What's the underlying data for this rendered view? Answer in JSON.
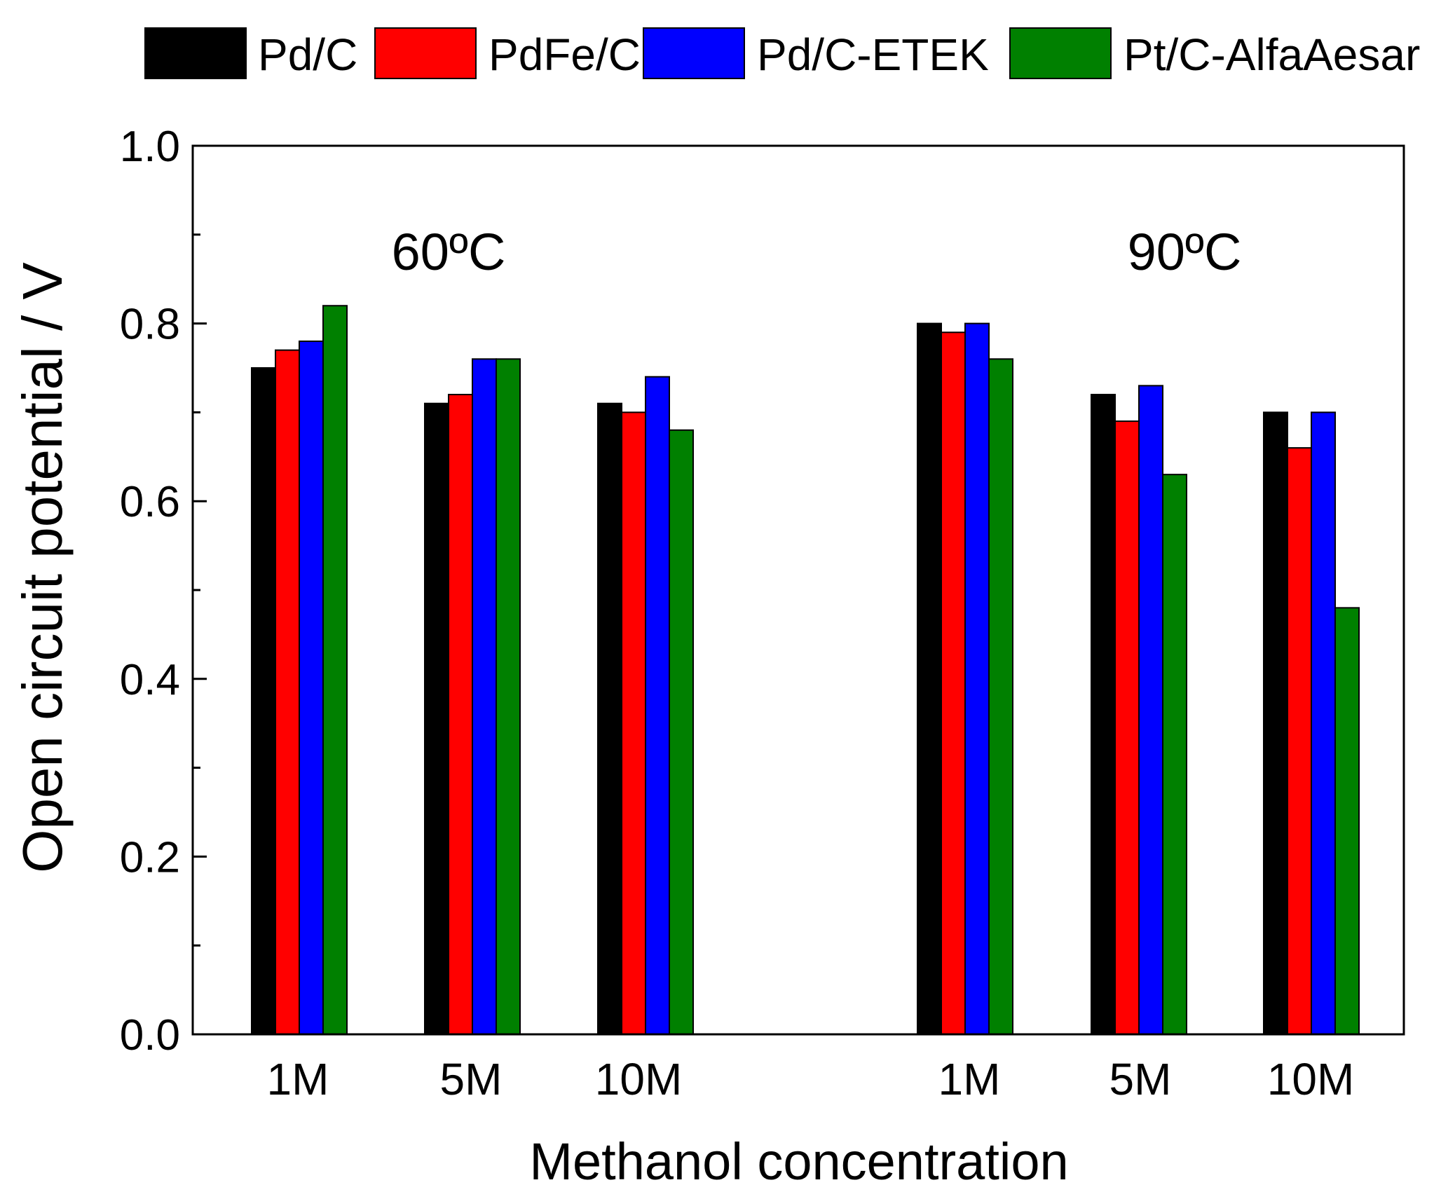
{
  "chart_data": {
    "type": "bar",
    "ylabel": "Open circuit potential / V",
    "xlabel": "Methanol concentration",
    "ylim": [
      0.0,
      1.0
    ],
    "y_ticks": [
      "0.0",
      "0.2",
      "0.4",
      "0.6",
      "0.8",
      "1.0"
    ],
    "grid": false,
    "legend_position": "top",
    "groups": [
      {
        "label": "60ºC",
        "categories": [
          "1M",
          "5M",
          "10M"
        ]
      },
      {
        "label": "90ºC",
        "categories": [
          "1M",
          "5M",
          "10M"
        ]
      }
    ],
    "series": [
      {
        "name": "Pd/C",
        "color": "#000000",
        "values": [
          0.75,
          0.71,
          0.71,
          0.8,
          0.72,
          0.7
        ]
      },
      {
        "name": "PdFe/C",
        "color": "#ff0000",
        "values": [
          0.77,
          0.72,
          0.7,
          0.79,
          0.69,
          0.66
        ]
      },
      {
        "name": "Pd/C-ETEK",
        "color": "#0000ff",
        "values": [
          0.78,
          0.76,
          0.74,
          0.8,
          0.73,
          0.7
        ]
      },
      {
        "name": "Pt/C-AlfaAesar",
        "color": "#008000",
        "values": [
          0.82,
          0.76,
          0.68,
          0.76,
          0.63,
          0.48
        ]
      }
    ]
  }
}
